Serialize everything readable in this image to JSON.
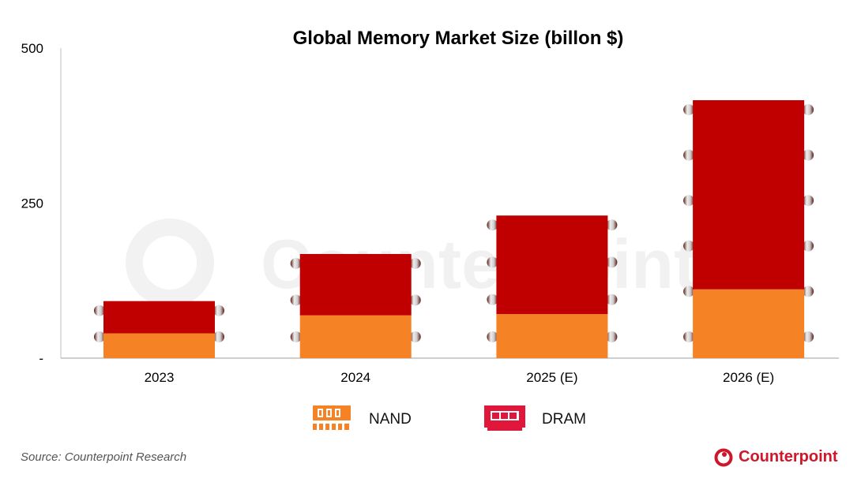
{
  "chart_data": {
    "type": "bar",
    "stacked": true,
    "title": "Global Memory Market Size (billon $)",
    "categories": [
      "2023",
      "2024",
      "2025 (E)",
      "2026 (E)"
    ],
    "series": [
      {
        "name": "NAND",
        "values": [
          40,
          69,
          71,
          111
        ],
        "color": "#f58225"
      },
      {
        "name": "DRAM",
        "values": [
          52,
          99,
          159,
          305
        ],
        "color": "#c00000"
      }
    ],
    "ylim": [
      0,
      500
    ],
    "yticks": [
      {
        "value": 0,
        "label": "-"
      },
      {
        "value": 250,
        "label": "250"
      },
      {
        "value": 500,
        "label": "500"
      }
    ],
    "grid": false,
    "legend_position": "bottom"
  },
  "source": "Source: Counterpoint Research",
  "logo": {
    "text": "Counterpoint",
    "color": "#d0162a"
  },
  "watermark": "Counterpoint"
}
